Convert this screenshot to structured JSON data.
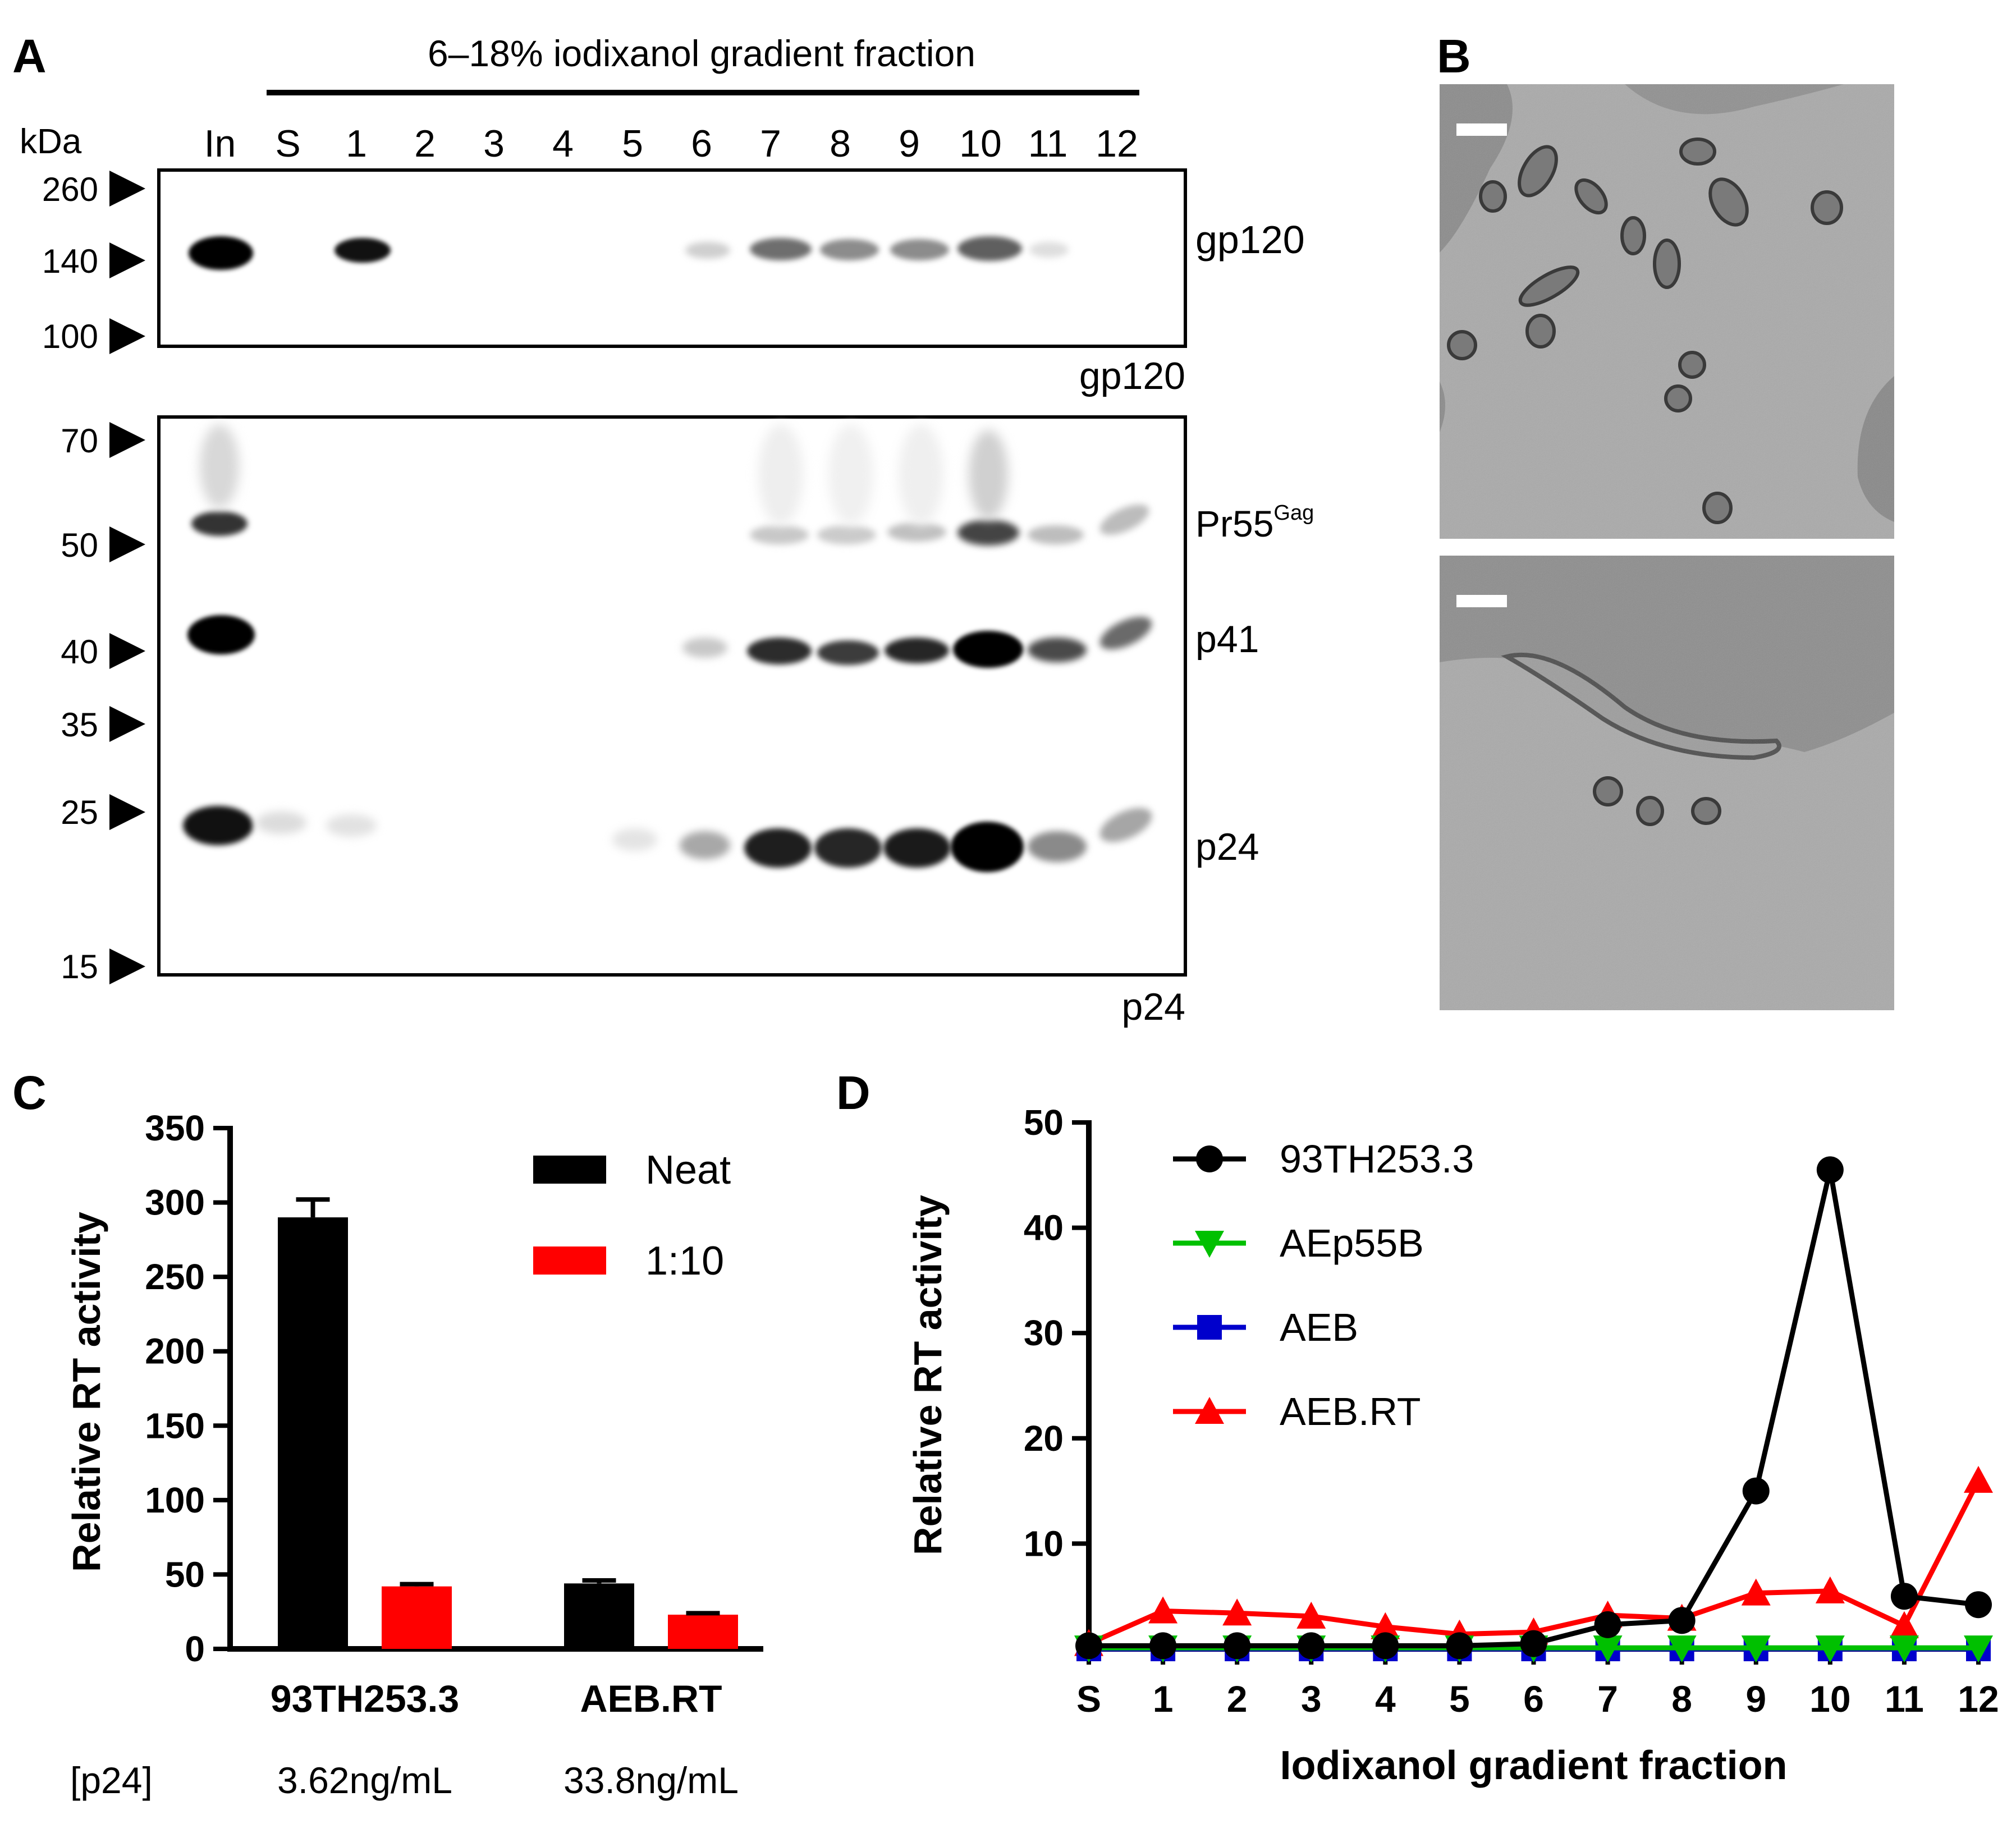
{
  "panels": {
    "A": "A",
    "B": "B",
    "C": "C",
    "D": "D"
  },
  "panelA": {
    "header": "6–18% iodixanol gradient fraction",
    "kda_label": "kDa",
    "lanes": [
      "In",
      "S",
      "1",
      "2",
      "3",
      "4",
      "5",
      "6",
      "7",
      "8",
      "9",
      "10",
      "11",
      "12"
    ],
    "top_blot": {
      "markers": [
        "260",
        "140",
        "100"
      ],
      "band_label": "gp120",
      "antibody": "gp120"
    },
    "bottom_blot": {
      "markers": [
        "70",
        "50",
        "40",
        "35",
        "25",
        "15"
      ],
      "band_labels": {
        "pr55_main": "Pr55",
        "pr55_sup": "Gag",
        "p41": "p41",
        "p24": "p24"
      },
      "antibody": "p24"
    }
  },
  "panelB": {},
  "panelC": {
    "chart_data": {
      "type": "bar",
      "categories": [
        "93TH253.3",
        "AEB.RT"
      ],
      "series": [
        {
          "name": "Neat",
          "color": "#000000",
          "values": [
            290,
            44
          ],
          "errors": [
            12,
            2
          ]
        },
        {
          "name": "1:10",
          "color": "#ff0000",
          "values": [
            42,
            23
          ],
          "errors": [
            1.5,
            1
          ]
        }
      ],
      "ylabel": "Relative RT activity",
      "ylim": [
        0,
        350
      ],
      "yticks": [
        "0",
        "50",
        "100",
        "150",
        "200",
        "250",
        "300",
        "350"
      ],
      "legend_position": "top-right"
    },
    "p24_row": {
      "label": "[p24]",
      "values": [
        "3.62ng/mL",
        "33.8ng/mL"
      ]
    }
  },
  "panelD": {
    "chart_data": {
      "type": "line",
      "x": [
        "S",
        "1",
        "2",
        "3",
        "4",
        "5",
        "6",
        "7",
        "8",
        "9",
        "10",
        "11",
        "12"
      ],
      "series": [
        {
          "name": "93TH253.3",
          "color": "#000000",
          "marker": "circle",
          "values": [
            0.3,
            0.3,
            0.3,
            0.3,
            0.3,
            0.3,
            0.5,
            2.3,
            2.7,
            15,
            45.5,
            5,
            4.2
          ]
        },
        {
          "name": "AEp55B",
          "color": "#00c000",
          "marker": "triangle-down",
          "values": [
            0.1,
            0.1,
            0.1,
            0.1,
            0.1,
            0.1,
            0.1,
            0.1,
            0.1,
            0.1,
            0.1,
            0.1,
            0.1
          ]
        },
        {
          "name": "AEB",
          "color": "#0000cc",
          "marker": "square",
          "values": [
            0,
            0,
            0,
            0,
            0,
            0,
            0,
            0,
            0,
            0,
            0,
            0,
            0
          ]
        },
        {
          "name": "AEB.RT",
          "color": "#ff0000",
          "marker": "triangle-up",
          "values": [
            0.5,
            3.6,
            3.4,
            3.1,
            2.1,
            1.4,
            1.6,
            3.2,
            2.9,
            5.3,
            5.5,
            2.2,
            16
          ]
        }
      ],
      "xlabel": "Iodixanol gradient fraction",
      "ylabel": "Relative RT activity",
      "ylim": [
        0,
        50
      ],
      "yticks": [
        "10",
        "20",
        "30",
        "40",
        "50"
      ],
      "legend_position": "top-left"
    }
  }
}
